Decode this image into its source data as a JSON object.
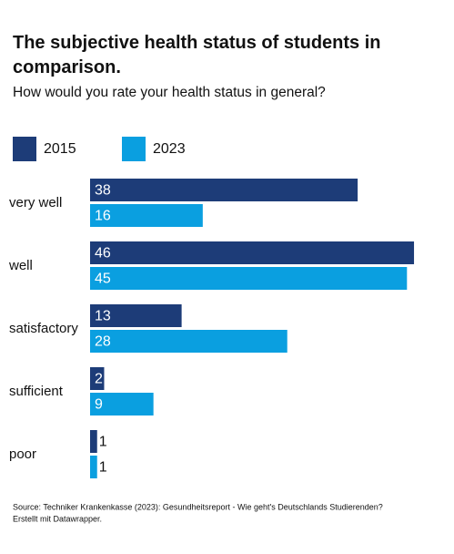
{
  "chart_data": {
    "type": "bar",
    "orientation": "horizontal",
    "title": "The subjective health status of students in comparison.",
    "subtitle": "How would you rate your health status in general?",
    "categories": [
      "very well",
      "well",
      "satisfactory",
      "sufficient",
      "poor"
    ],
    "series": [
      {
        "name": "2015",
        "color": "#1d3c78",
        "values": [
          38,
          46,
          13,
          2,
          1
        ]
      },
      {
        "name": "2023",
        "color": "#0a9fe0",
        "values": [
          16,
          45,
          28,
          9,
          1
        ]
      }
    ],
    "legend": "top-left",
    "source": "Source: Techniker Krankenkasse (2023): Gesundheitsreport - Wie geht's Deutschlands Studierenden?",
    "note": "Erstellt mit Datawrapper."
  }
}
